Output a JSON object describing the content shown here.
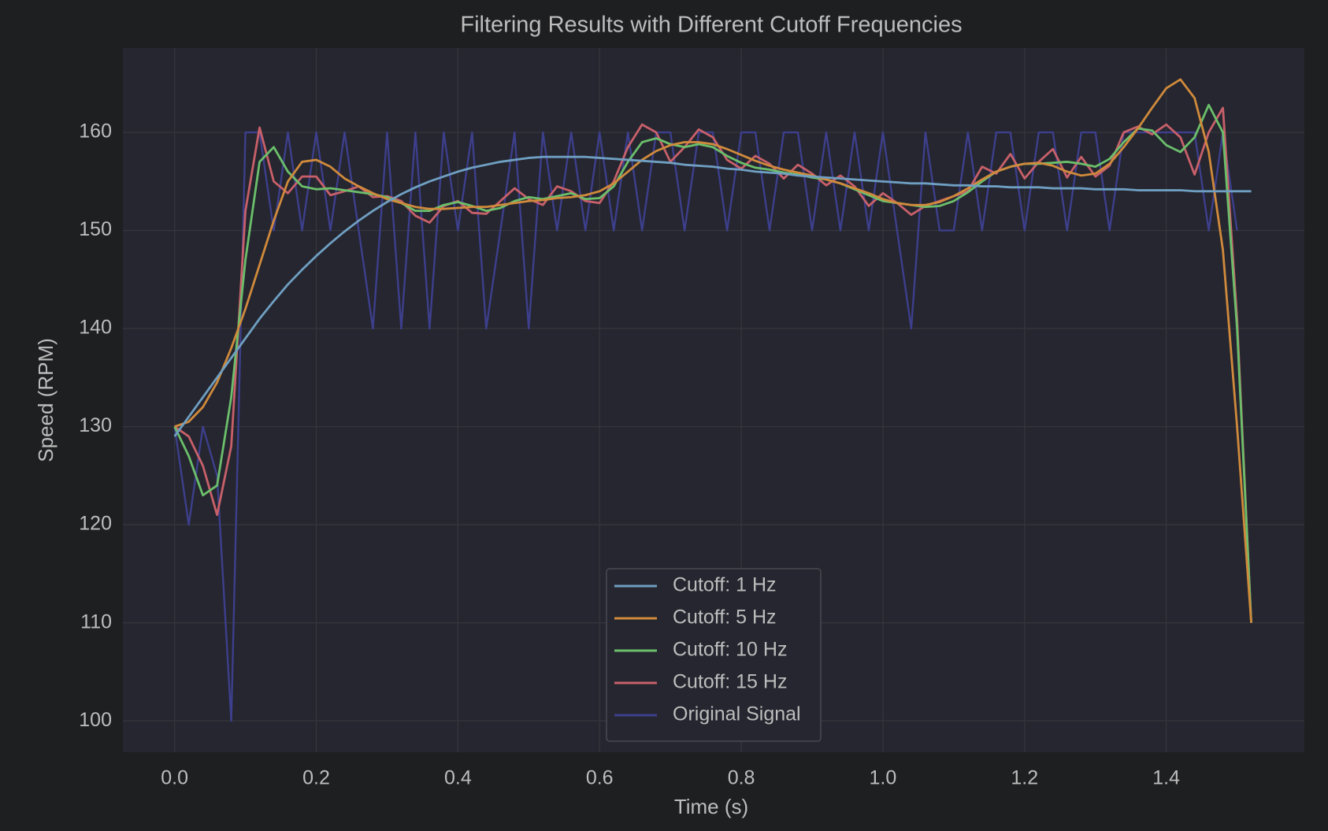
{
  "chart_data": {
    "type": "line",
    "title": "Filtering Results with Different Cutoff Frequencies",
    "x_label": "Time (s)",
    "y_label": "Speed (RPM)",
    "xlim": [
      -0.073,
      1.595
    ],
    "ylim": [
      96.8,
      168.6
    ],
    "xticks": [
      {
        "value": 0,
        "label": "0.0"
      },
      0.2,
      0.4,
      0.6,
      0.8,
      {
        "value": 1,
        "label": "1.0"
      },
      1.2,
      1.4
    ],
    "yticks": [
      100,
      110,
      120,
      130,
      140,
      150,
      160
    ],
    "grid": true,
    "legend": "lower center",
    "x": [
      0,
      0.02,
      0.04,
      0.06,
      0.08,
      0.1,
      0.12,
      0.14,
      0.16,
      0.18,
      0.2,
      0.22,
      0.24,
      0.26,
      0.28,
      0.3,
      0.32,
      0.34,
      0.36,
      0.38,
      0.4,
      0.42,
      0.44,
      0.46,
      0.48,
      0.5,
      0.52,
      0.54,
      0.56,
      0.58,
      0.6,
      0.62,
      0.64,
      0.66,
      0.68,
      0.7,
      0.72,
      0.74,
      0.76,
      0.78,
      0.8,
      0.82,
      0.84,
      0.86,
      0.88,
      0.9,
      0.92,
      0.94,
      0.96,
      0.98,
      1,
      1.02,
      1.04,
      1.06,
      1.08,
      1.1,
      1.12,
      1.14,
      1.16,
      1.18,
      1.2,
      1.22,
      1.24,
      1.26,
      1.28,
      1.3,
      1.32,
      1.34,
      1.36,
      1.38,
      1.4,
      1.42,
      1.44,
      1.46,
      1.48,
      1.5,
      1.52
    ],
    "series": [
      {
        "name": "Cutoff: 1 Hz",
        "color": "#6f9fc2",
        "values": [
          129,
          131,
          133,
          135,
          137,
          139,
          141,
          142.8,
          144.5,
          146,
          147.4,
          148.7,
          149.9,
          151,
          152,
          152.9,
          153.7,
          154.4,
          155,
          155.5,
          156,
          156.4,
          156.7,
          157,
          157.2,
          157.4,
          157.5,
          157.5,
          157.5,
          157.5,
          157.4,
          157.3,
          157.2,
          157.1,
          157,
          156.9,
          156.7,
          156.6,
          156.5,
          156.3,
          156.2,
          156,
          155.9,
          155.8,
          155.6,
          155.5,
          155.4,
          155.3,
          155.2,
          155.1,
          155,
          154.9,
          154.8,
          154.8,
          154.7,
          154.6,
          154.6,
          154.5,
          154.5,
          154.4,
          154.4,
          154.4,
          154.3,
          154.3,
          154.3,
          154.2,
          154.2,
          154.2,
          154.1,
          154.1,
          154.1,
          154.1,
          154,
          154,
          154,
          154,
          154
        ]
      },
      {
        "name": "Cutoff: 5 Hz",
        "color": "#d08a3c",
        "values": [
          130,
          130.5,
          132,
          134.5,
          138,
          142,
          146.5,
          151,
          155,
          157,
          157.2,
          156.5,
          155.3,
          154.5,
          153.8,
          153.2,
          152.8,
          152.4,
          152.2,
          152.2,
          152.3,
          152.4,
          152.4,
          152.6,
          152.8,
          153,
          153.1,
          153.3,
          153.4,
          153.6,
          154,
          154.8,
          156,
          157.2,
          158.1,
          158.7,
          159,
          159,
          158.8,
          158.3,
          157.7,
          157.1,
          156.6,
          156.2,
          155.9,
          155.6,
          155.2,
          154.8,
          154.3,
          153.8,
          153.2,
          152.8,
          152.6,
          152.6,
          152.9,
          153.5,
          154.3,
          155.2,
          156,
          156.5,
          156.8,
          156.9,
          156.6,
          156,
          155.6,
          155.8,
          156.8,
          158.5,
          160.4,
          162.5,
          164.5,
          165.4,
          163.5,
          158,
          148,
          130,
          110
        ]
      },
      {
        "name": "Cutoff: 10 Hz",
        "color": "#6bbf6b",
        "values": [
          130,
          127,
          123,
          124,
          133,
          147,
          157,
          158.5,
          156,
          154.5,
          154.2,
          154.3,
          154.1,
          153.9,
          153.7,
          153.4,
          152.8,
          152,
          152,
          152.6,
          152.9,
          152.5,
          152,
          152.3,
          153,
          153.4,
          153.2,
          153.5,
          153.8,
          153.2,
          153.3,
          154.5,
          157,
          159,
          159.4,
          158.8,
          158.5,
          158.8,
          158.5,
          157.6,
          156.9,
          156.4,
          156.2,
          155.9,
          155.7,
          155.4,
          155.2,
          154.8,
          154.2,
          153.6,
          153,
          152.8,
          152.6,
          152.4,
          152.5,
          153,
          153.9,
          155,
          156,
          156.5,
          156.8,
          156.8,
          156.9,
          157,
          156.8,
          156.5,
          157.3,
          159,
          160.4,
          160.2,
          158.7,
          158,
          159.5,
          162.8,
          160,
          140,
          110
        ]
      },
      {
        "name": "Cutoff: 15 Hz",
        "color": "#c8606a",
        "values": [
          130,
          129,
          126,
          121,
          128,
          152,
          160.5,
          155,
          153.8,
          155.5,
          155.5,
          153.6,
          154,
          154.5,
          153.4,
          153.5,
          153,
          151.5,
          150.8,
          152.5,
          153,
          151.8,
          151.7,
          153,
          154.3,
          153.2,
          152.6,
          154.5,
          154,
          153,
          152.8,
          155,
          158.5,
          160.8,
          160,
          157,
          158.5,
          160.3,
          159.5,
          157.2,
          156.3,
          157.6,
          156.8,
          155.3,
          156.7,
          155.8,
          154.6,
          155.6,
          154.5,
          152.5,
          153.8,
          152.8,
          151.6,
          152.5,
          153,
          153.5,
          154,
          156.5,
          155.8,
          157.8,
          155.3,
          157,
          158.3,
          155.4,
          157.5,
          155.5,
          156.6,
          160,
          160.6,
          159.8,
          160.8,
          159.5,
          155.7,
          160,
          162.5,
          141,
          110
        ]
      },
      {
        "name": "Original Signal",
        "color": "#3d3f8c",
        "values": [
          130,
          120,
          130,
          125,
          100,
          160,
          160,
          150,
          160,
          150,
          160,
          150,
          160,
          150,
          140,
          160,
          140,
          160,
          140,
          160,
          150,
          160,
          140,
          150,
          160,
          140,
          160,
          150,
          160,
          150,
          160,
          150,
          160,
          150,
          160,
          160,
          150,
          160,
          160,
          150,
          160,
          160,
          150,
          160,
          160,
          150,
          160,
          150,
          160,
          150,
          160,
          150,
          140,
          160,
          150,
          150,
          160,
          150,
          160,
          160,
          150,
          160,
          160,
          150,
          160,
          160,
          150,
          160,
          160,
          160,
          160,
          160,
          160,
          150,
          160,
          150,
          null
        ]
      }
    ]
  }
}
